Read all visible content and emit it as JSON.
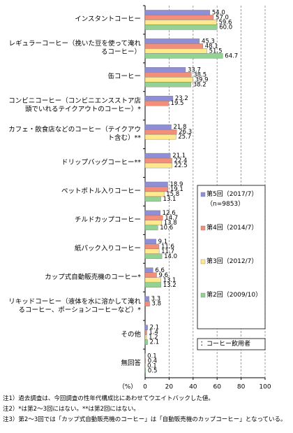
{
  "chart_data": {
    "type": "bar",
    "orientation": "horizontal",
    "categories": [
      "インスタントコーヒー",
      "レギュラーコーヒー（挽いた豆を使って淹れるコーヒー）",
      "缶コーヒー",
      "コンビニコーヒー（コンビニエンスストア店頭でいれるテイクアウトのコーヒー）*",
      "カフェ・飲食店などのコーヒー（テイクアウト含む）**",
      "ドリップバッグコーヒー**",
      "ペットボトル入りコーヒー",
      "チルドカップコーヒー",
      "紙パック入りコーヒー",
      "カップ式自動販売機のコーヒー*",
      "リキッドコーヒー（液体を水に溶かして淹れるコーヒー、ポーションコーヒーなど）*",
      "その他",
      "無回答"
    ],
    "series": [
      {
        "name": "第5回（2017/7）",
        "color": "#8f8fd9",
        "values": [
          54.0,
          45.3,
          33.7,
          23.2,
          21.8,
          21.1,
          18.9,
          12.6,
          9.1,
          6.6,
          3.3,
          2.1,
          0.1
        ],
        "value_labels": [
          "54.0",
          "45.3",
          "33.7",
          "23.2",
          "21.8",
          "21.1",
          "18.9",
          "12.6",
          "9.1",
          "6.6",
          "3.3",
          "2.1",
          "0.1"
        ]
      },
      {
        "name": "第4回（2014/7）",
        "color": "#f28e7a",
        "values": [
          57.0,
          48.1,
          38.5,
          19.5,
          26.3,
          22.4,
          19.1,
          14.7,
          11.6,
          9.6,
          3.8,
          1.4,
          0.4
        ],
        "value_labels": [
          "57.0",
          "48.1",
          "38.5",
          "19.5",
          "26.3",
          "22.4",
          "19.1",
          "14.7",
          "11.6",
          "9.6",
          "3.8",
          "1.4",
          "0.4"
        ]
      },
      {
        "name": "第3回（2012/7）",
        "color": "#ffe98c",
        "values": [
          59.6,
          51.5,
          39.9,
          null,
          25.7,
          22.5,
          15.8,
          13.8,
          11.7,
          13.1,
          null,
          1.2,
          0.1
        ],
        "value_labels": [
          "59.6",
          "51.5",
          "39.9",
          null,
          "25.7",
          "22.5",
          "15.8",
          "13.8",
          "11.7",
          "13.1",
          null,
          "1.2",
          "0.1"
        ]
      },
      {
        "name": "第2回（2009/10）",
        "color": "#92d392",
        "values": [
          60.0,
          64.7,
          38.2,
          null,
          null,
          null,
          13.1,
          10.6,
          14.0,
          13.2,
          null,
          2.1,
          0.5
        ],
        "value_labels": [
          "60.0",
          "64.7",
          "38.2",
          null,
          null,
          null,
          "13.1",
          "10.6",
          "14.0",
          "13.2",
          null,
          "2.1",
          "0.5"
        ]
      }
    ],
    "sample_size": "（n=9853）",
    "population_note": "：コーヒー飲用者",
    "x_unit_label": "（%）",
    "xlim": [
      0,
      100
    ],
    "xticks": [
      0,
      20,
      40,
      60,
      80,
      100
    ],
    "grid": true,
    "notes": [
      "注1）過去調査は、今回調査の性年代構成比にあわせてウエイトバックした値。",
      "注2）*は第2～3回にはない。**は第2回にはない。",
      "注3）第2～3回では「カップ式自動販売機のコーヒー」は「自動販売機のカップコーヒー」となっている。"
    ]
  }
}
